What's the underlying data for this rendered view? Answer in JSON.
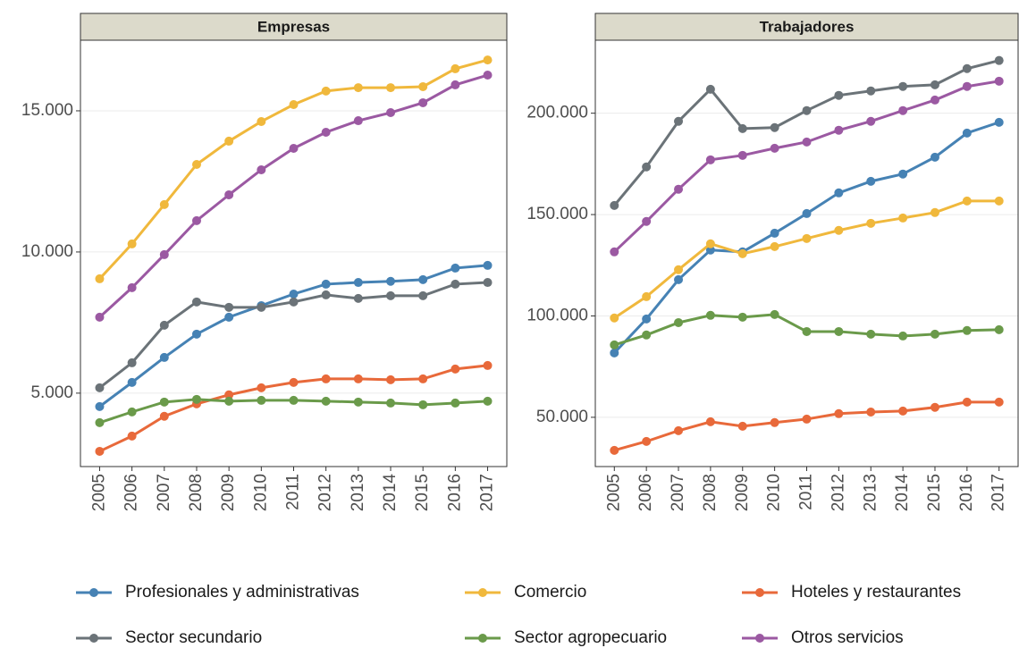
{
  "chart_data": [
    {
      "type": "line",
      "title": "Empresas",
      "x": [
        2005,
        2006,
        2007,
        2008,
        2009,
        2010,
        2011,
        2012,
        2013,
        2014,
        2015,
        2016,
        2017
      ],
      "ylim": [
        2400,
        17500
      ],
      "yticks": [
        {
          "value": 5000,
          "label": "5.000"
        },
        {
          "value": 10000,
          "label": "10.000"
        },
        {
          "value": 15000,
          "label": "15.000"
        }
      ],
      "grid": true,
      "series": [
        {
          "name": "Profesionales y administrativas",
          "color": "#4682b4",
          "values": [
            4525,
            5380,
            6265,
            7090,
            7690,
            8100,
            8510,
            8860,
            8920,
            8960,
            9020,
            9430,
            9525
          ]
        },
        {
          "name": "Comercio",
          "color": "#f0b83c",
          "values": [
            9050,
            10285,
            11680,
            13100,
            13925,
            14620,
            15220,
            15700,
            15820,
            15820,
            15855,
            16490,
            16800
          ]
        },
        {
          "name": "Hoteles y restaurantes",
          "color": "#e8693a",
          "values": [
            2940,
            3480,
            4180,
            4620,
            4940,
            5190,
            5380,
            5505,
            5505,
            5475,
            5505,
            5855,
            5980
          ]
        },
        {
          "name": "Sector secundario",
          "color": "#6b7378",
          "values": [
            5190,
            6075,
            7405,
            8230,
            8040,
            8040,
            8230,
            8480,
            8355,
            8450,
            8450,
            8860,
            8920
          ]
        },
        {
          "name": "Sector agropecuario",
          "color": "#6a9a4a",
          "values": [
            3955,
            4335,
            4685,
            4780,
            4715,
            4745,
            4745,
            4715,
            4685,
            4650,
            4590,
            4650,
            4715
          ]
        },
        {
          "name": "Otros servicios",
          "color": "#9b59a2",
          "values": [
            7690,
            8735,
            9905,
            11110,
            12025,
            12910,
            13670,
            14240,
            14650,
            14935,
            15285,
            15920,
            16265
          ]
        }
      ]
    },
    {
      "type": "line",
      "title": "Trabajadores",
      "x": [
        2005,
        2006,
        2007,
        2008,
        2009,
        2010,
        2011,
        2012,
        2013,
        2014,
        2015,
        2016,
        2017
      ],
      "ylim": [
        25700,
        236000
      ],
      "yticks": [
        {
          "value": 50000,
          "label": "50.000"
        },
        {
          "value": 100000,
          "label": "100.000"
        },
        {
          "value": 150000,
          "label": "150.000"
        },
        {
          "value": 200000,
          "label": "200.000"
        }
      ],
      "grid": true,
      "series": [
        {
          "color": "#4682b4",
          "values": [
            81750,
            98500,
            117900,
            132500,
            131600,
            140800,
            150500,
            160700,
            166400,
            170000,
            178300,
            190200,
            195500
          ]
        },
        {
          "color": "#f0b83c",
          "values": [
            99000,
            109500,
            122800,
            135600,
            130700,
            134200,
            138200,
            142200,
            145700,
            148300,
            151000,
            156700,
            156700
          ]
        },
        {
          "color": "#e8693a",
          "values": [
            33700,
            38100,
            43400,
            47800,
            45600,
            47400,
            49100,
            51800,
            52600,
            53100,
            54900,
            57500,
            57500
          ]
        },
        {
          "color": "#6b7378",
          "values": [
            154500,
            173500,
            196000,
            211800,
            192400,
            192900,
            201300,
            208800,
            211000,
            213200,
            214000,
            222000,
            226000
          ]
        },
        {
          "color": "#6a9a4a",
          "values": [
            85700,
            90600,
            96700,
            100300,
            99400,
            100700,
            92300,
            92300,
            91000,
            90100,
            91000,
            92800,
            93200
          ]
        },
        {
          "color": "#9b59a2",
          "values": [
            131600,
            146600,
            162500,
            177000,
            179200,
            182700,
            185800,
            191600,
            196000,
            201300,
            206500,
            213200,
            215800
          ]
        }
      ]
    }
  ]
}
